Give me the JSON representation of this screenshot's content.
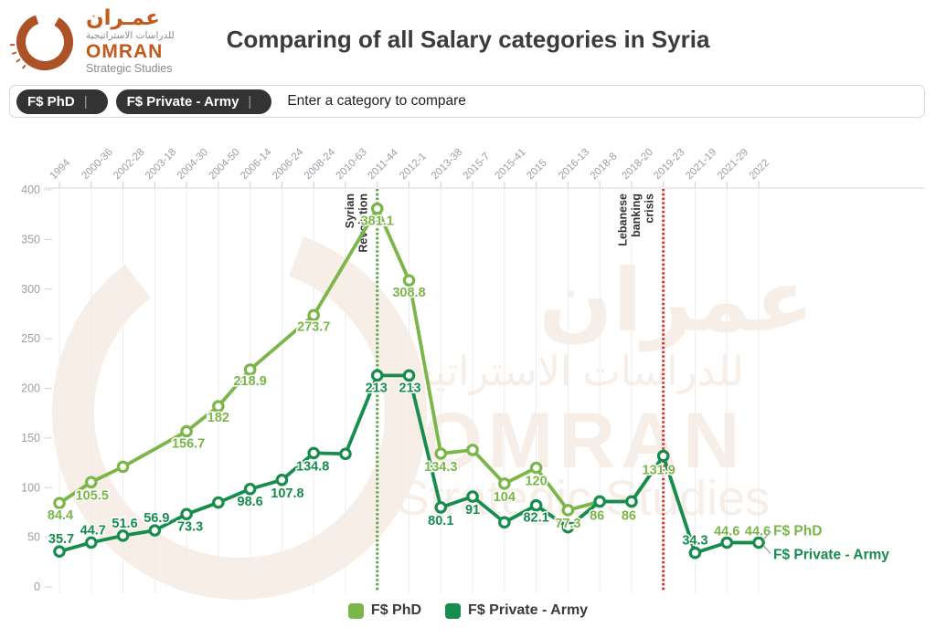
{
  "header": {
    "logo": {
      "arabic_name": "عمـران",
      "arabic_sub": "للدراسات الاستراتيجية",
      "latin_name": "OMRAN",
      "latin_sub": "Strategic Studies"
    },
    "title": "Comparing of all Salary categories in Syria"
  },
  "filter_bar": {
    "chips": [
      {
        "label": "F$ PhD"
      },
      {
        "label": "F$ Private - Army"
      }
    ],
    "divider_glyph": "|",
    "placeholder": "Enter a category to compare"
  },
  "watermark": {
    "lines": [
      "عمران",
      "للدراسات الاستراتيجية",
      "OMRAN",
      "Strategic Studies"
    ],
    "color": "#f6eee7"
  },
  "chart_data": {
    "type": "line",
    "title": "Comparing of all Salary categories in Syria",
    "xlabel": "",
    "ylabel": "",
    "ylim": [
      0,
      400
    ],
    "yticks": [
      0,
      50,
      100,
      150,
      200,
      250,
      300,
      350,
      400
    ],
    "grid": "vertical",
    "legend_position": "bottom-center",
    "categories": [
      "1994",
      "2000-36",
      "2002-28",
      "2003-18",
      "2004-30",
      "2004-50",
      "2006-14",
      "2006-24",
      "2008-24",
      "2010-63",
      "2011-44",
      "2012-1",
      "2013-38",
      "2015-7",
      "2015-41",
      "2015",
      "2016-13",
      "2018-8",
      "2018-20",
      "2019-23",
      "2021-19",
      "2021-29",
      "2022"
    ],
    "series": [
      {
        "name": "F$ PhD",
        "color": "#7ab648",
        "values": [
          84.4,
          105.5,
          121,
          null,
          156.7,
          182,
          218.9,
          null,
          273.7,
          null,
          381.1,
          308.8,
          134.3,
          138,
          104,
          120,
          77.3,
          86,
          86,
          131.9,
          34.3,
          44.6,
          44.6
        ],
        "labels": [
          {
            "t": "84.4",
            "dx": 1,
            "dy": 18
          },
          {
            "t": "105.5",
            "dx": 1,
            "dy": 19
          },
          null,
          null,
          {
            "t": "156.7",
            "dx": 2,
            "dy": 18
          },
          {
            "t": "182",
            "dx": 0,
            "dy": 17
          },
          {
            "t": "218.9",
            "dx": 0,
            "dy": 17
          },
          null,
          {
            "t": "273.7",
            "dx": 0,
            "dy": 17
          },
          null,
          {
            "t": "381.1",
            "dx": 0,
            "dy": 18
          },
          {
            "t": "308.8",
            "dx": 0,
            "dy": 18
          },
          {
            "t": "134.3",
            "dx": 0,
            "dy": 19
          },
          null,
          {
            "t": "104",
            "dx": 0,
            "dy": 19
          },
          {
            "t": "120",
            "dx": 0,
            "dy": 19
          },
          {
            "t": "77.3",
            "dx": 0,
            "dy": 19
          },
          {
            "t": "86",
            "dx": -3,
            "dy": 20
          },
          {
            "t": "86",
            "dx": -3,
            "dy": 20
          },
          {
            "t": "131.9",
            "dx": -5,
            "dy": 20
          },
          null,
          {
            "t": "44.6",
            "dx": 0,
            "dy": -8
          },
          {
            "t": "44.6",
            "dx": -1,
            "dy": -8
          }
        ]
      },
      {
        "name": "F$ Private - Army",
        "color": "#168c4d",
        "values": [
          35.7,
          44.7,
          51.6,
          56.9,
          73.3,
          85,
          98.6,
          107.8,
          134.8,
          134,
          213,
          213,
          80.1,
          91,
          65,
          82.1,
          60,
          86,
          86,
          131.9,
          34.3,
          44.6,
          44.6
        ],
        "labels": [
          {
            "t": "35.7",
            "dx": 2,
            "dy": -9
          },
          {
            "t": "44.7",
            "dx": 2,
            "dy": -9
          },
          {
            "t": "51.6",
            "dx": 2,
            "dy": -9
          },
          {
            "t": "56.9",
            "dx": 2,
            "dy": -9
          },
          {
            "t": "73.3",
            "dx": 4,
            "dy": 18
          },
          null,
          {
            "t": "98.6",
            "dx": 0,
            "dy": 18
          },
          {
            "t": "107.8",
            "dx": 6,
            "dy": 19
          },
          {
            "t": "134.8",
            "dx": -1,
            "dy": 19
          },
          null,
          {
            "t": "213",
            "dx": -1,
            "dy": 18
          },
          {
            "t": "213",
            "dx": 1,
            "dy": 18
          },
          {
            "t": "80.1",
            "dx": 0,
            "dy": 19
          },
          {
            "t": "91",
            "dx": 0,
            "dy": 19
          },
          null,
          {
            "t": "82.1",
            "dx": 0,
            "dy": 18
          },
          null,
          null,
          null,
          null,
          {
            "t": "34.3",
            "dx": 0,
            "dy": -9
          },
          null,
          null
        ]
      }
    ],
    "annotations": [
      {
        "category": "2011-44",
        "lines": [
          "Syrian",
          "Revolution"
        ],
        "color": "#55a83b"
      },
      {
        "category": "2019-23",
        "lines": [
          "Lebanese",
          "banking",
          "crisis"
        ],
        "color": "#d93030"
      }
    ],
    "end_labels": [
      {
        "text": "F$ PhD",
        "color": "#7ab648"
      },
      {
        "text": "F$ Private - Army",
        "color": "#168c4d"
      }
    ],
    "legend": [
      {
        "label": "F$ PhD",
        "color": "#7ab648"
      },
      {
        "label": "F$ Private - Army",
        "color": "#168c4d"
      }
    ]
  }
}
